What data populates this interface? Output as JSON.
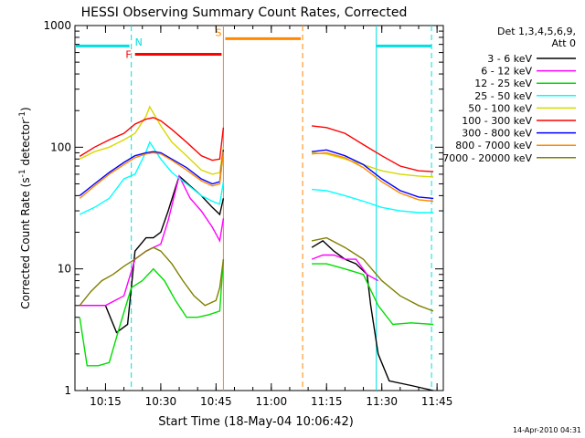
{
  "chart_data": {
    "type": "line",
    "title": "HESSI Observing Summary Count Rates, Corrected",
    "xlabel": "Start Time (18-May-04 10:06:42)",
    "ylabel_main": "Corrected Count Rate (s",
    "ylabel_sup": "-1",
    "ylabel_tail": " detector",
    "ylabel_end": ")",
    "date_stamp": "14-Apr-2010 04:31",
    "y_scale": "log",
    "ylim": [
      1,
      1000
    ],
    "xlim": [
      "10:06:42",
      "11:46:42"
    ],
    "x_ticks": [
      "10:15",
      "10:30",
      "10:45",
      "11:00",
      "11:15",
      "11:30",
      "11:45"
    ],
    "y_ticks": [
      1,
      10,
      100,
      1000
    ],
    "y_tick_labels": [
      "1",
      "10",
      "100",
      "1000"
    ],
    "grid": false,
    "legend_placement": "right",
    "legend_title_line1": "Det 1,3,4,5,6,9,",
    "legend_title_line2": "Att 0",
    "data_gap": [
      "10:47:00",
      "11:11:00"
    ],
    "series": [
      {
        "name": "3 - 6 keV",
        "color": "#000000",
        "x": [
          "10:08",
          "10:15",
          "10:18",
          "10:21",
          "10:23",
          "10:26",
          "10:28",
          "10:30",
          "10:32",
          "10:35",
          "10:38",
          "10:41",
          "10:44",
          "10:46",
          "10:47",
          "11:11",
          "11:14",
          "11:17",
          "11:20",
          "11:23",
          "11:26",
          "11:27",
          "11:29",
          "11:32",
          "11:38",
          "11:44"
        ],
        "y": [
          5,
          5,
          3,
          3.5,
          14,
          18,
          18,
          20,
          30,
          58,
          48,
          40,
          32,
          28,
          38,
          15,
          17,
          14,
          12,
          11,
          9,
          5,
          2,
          1.2,
          1.1,
          1
        ]
      },
      {
        "name": "6 - 12 keV",
        "color": "#ff00ff",
        "x": [
          "10:08",
          "10:15",
          "10:20",
          "10:23",
          "10:26",
          "10:28",
          "10:30",
          "10:32",
          "10:35",
          "10:38",
          "10:41",
          "10:44",
          "10:46",
          "10:47",
          "11:11",
          "11:14",
          "11:17",
          "11:20",
          "11:23",
          "11:26",
          "11:29"
        ],
        "y": [
          5,
          5,
          6,
          12,
          14,
          15,
          16,
          25,
          58,
          38,
          30,
          22,
          17,
          26,
          12,
          13,
          13,
          12,
          12,
          9,
          8
        ]
      },
      {
        "name": "12 - 25 keV",
        "color": "#00dd00",
        "x": [
          "10:08",
          "10:10",
          "10:13",
          "10:16",
          "10:19",
          "10:22",
          "10:25",
          "10:28",
          "10:31",
          "10:34",
          "10:37",
          "10:40",
          "10:43",
          "10:46",
          "10:47",
          "11:11",
          "11:15",
          "11:20",
          "11:25",
          "11:29",
          "11:33",
          "11:38",
          "11:44"
        ],
        "y": [
          4,
          1.6,
          1.6,
          1.7,
          3.5,
          7,
          8,
          10,
          8,
          5.5,
          4,
          4,
          4.2,
          4.5,
          12,
          11,
          11,
          10,
          9,
          5,
          3.5,
          3.6,
          3.5
        ]
      },
      {
        "name": "25 - 50 keV",
        "color": "#00ffff",
        "x": [
          "10:08",
          "10:12",
          "10:16",
          "10:20",
          "10:23",
          "10:26",
          "10:27",
          "10:30",
          "10:33",
          "10:37",
          "10:41",
          "10:44",
          "10:46",
          "10:47",
          "11:11",
          "11:15",
          "11:20",
          "11:25",
          "11:30",
          "11:35",
          "11:40",
          "11:44"
        ],
        "y": [
          28,
          32,
          38,
          55,
          60,
          92,
          110,
          80,
          62,
          50,
          40,
          36,
          34,
          52,
          45,
          44,
          40,
          36,
          32,
          30,
          29,
          29
        ]
      },
      {
        "name": "50 - 100 keV",
        "color": "#d8d800",
        "x": [
          "10:08",
          "10:12",
          "10:16",
          "10:20",
          "10:23",
          "10:26",
          "10:27",
          "10:30",
          "10:33",
          "10:37",
          "10:41",
          "10:44",
          "10:46",
          "10:47",
          "11:11",
          "11:15",
          "11:20",
          "11:25",
          "11:30",
          "11:35",
          "11:40",
          "11:44"
        ],
        "y": [
          80,
          92,
          100,
          115,
          130,
          180,
          215,
          150,
          110,
          85,
          65,
          60,
          62,
          100,
          90,
          88,
          80,
          72,
          64,
          60,
          58,
          57
        ]
      },
      {
        "name": "100 - 300 keV",
        "color": "#ff0000",
        "x": [
          "10:08",
          "10:12",
          "10:16",
          "10:20",
          "10:23",
          "10:26",
          "10:28",
          "10:30",
          "10:33",
          "10:37",
          "10:41",
          "10:44",
          "10:46",
          "10:47",
          "11:11",
          "11:15",
          "11:20",
          "11:25",
          "11:30",
          "11:35",
          "11:40",
          "11:44"
        ],
        "y": [
          84,
          100,
          115,
          130,
          155,
          170,
          175,
          165,
          140,
          110,
          85,
          78,
          80,
          145,
          150,
          145,
          130,
          105,
          85,
          70,
          64,
          63
        ]
      },
      {
        "name": "300 - 800 keV",
        "color": "#0000ff",
        "x": [
          "10:08",
          "10:12",
          "10:16",
          "10:20",
          "10:23",
          "10:26",
          "10:28",
          "10:30",
          "10:33",
          "10:37",
          "10:41",
          "10:44",
          "10:46",
          "10:47",
          "11:11",
          "11:15",
          "11:20",
          "11:25",
          "11:30",
          "11:35",
          "11:40",
          "11:44"
        ],
        "y": [
          40,
          50,
          62,
          75,
          85,
          90,
          92,
          90,
          80,
          68,
          55,
          50,
          52,
          95,
          92,
          95,
          85,
          72,
          55,
          44,
          39,
          38
        ]
      },
      {
        "name": "800 - 7000 keV",
        "color": "#ff8800",
        "x": [
          "10:08",
          "10:12",
          "10:16",
          "10:20",
          "10:23",
          "10:26",
          "10:28",
          "10:30",
          "10:33",
          "10:37",
          "10:41",
          "10:44",
          "10:46",
          "10:47",
          "11:11",
          "11:15",
          "11:20",
          "11:25",
          "11:30",
          "11:35",
          "11:40",
          "11:44"
        ],
        "y": [
          38,
          48,
          60,
          72,
          82,
          88,
          90,
          88,
          78,
          65,
          53,
          48,
          50,
          92,
          88,
          90,
          82,
          68,
          52,
          42,
          37,
          36
        ]
      },
      {
        "name": "7000 - 20000 keV",
        "color": "#808000",
        "x": [
          "10:08",
          "10:11",
          "10:14",
          "10:17",
          "10:20",
          "10:23",
          "10:26",
          "10:28",
          "10:30",
          "10:33",
          "10:36",
          "10:39",
          "10:42",
          "10:45",
          "10:46",
          "10:47",
          "11:11",
          "11:15",
          "11:20",
          "11:25",
          "11:30",
          "11:35",
          "11:40",
          "11:44"
        ],
        "y": [
          5,
          6.5,
          8,
          9,
          10.5,
          12,
          14,
          15,
          14,
          11,
          8,
          6,
          5,
          5.5,
          7,
          12,
          17,
          18,
          15,
          12,
          8,
          6,
          5,
          4.5
        ]
      }
    ],
    "annotations": {
      "intervals": [
        {
          "label": "",
          "color": "#00e0e0",
          "start": "10:06:42",
          "end": "10:21:30",
          "level": 680
        },
        {
          "label": "",
          "color": "#00e0e0",
          "start": "11:28:30",
          "end": "11:43:30",
          "level": 680
        },
        {
          "label": "F",
          "color": "#ff0000",
          "start": "10:23:00",
          "end": "10:46:30",
          "level": 580
        },
        {
          "label": "S",
          "color": "#ff8800",
          "start": "10:47:30",
          "end": "11:08:00",
          "level": 780
        }
      ],
      "markers": [
        {
          "label": "N",
          "color": "#00e0e0",
          "time": "10:22:00",
          "dashed": true
        },
        {
          "label": "",
          "color": "#00e0e0",
          "time": "11:28:30",
          "dashed": false
        },
        {
          "label": "",
          "color": "#00e0e0",
          "time": "11:43:30",
          "dashed": true
        },
        {
          "label": "",
          "color": "#ff8800",
          "time": "10:47:00",
          "dashed": false
        },
        {
          "label": "",
          "color": "#ff8800",
          "time": "11:08:30",
          "dashed": true
        }
      ]
    }
  }
}
